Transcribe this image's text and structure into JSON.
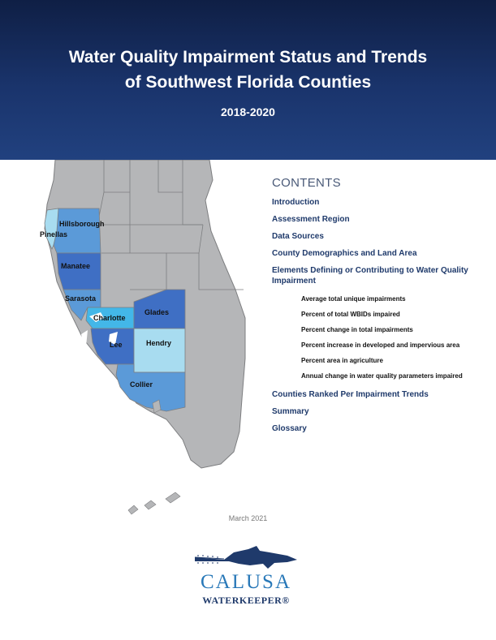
{
  "header": {
    "title_line1": "Water Quality Impairment Status and Trends",
    "title_line2": "of Southwest Florida Counties",
    "years": "2018-2020"
  },
  "map": {
    "counties": {
      "pinellas": "Pinellas",
      "hillsborough": "Hillsborough",
      "manatee": "Manatee",
      "sarasota": "Sarasota",
      "charlotte": "Charlotte",
      "glades": "Glades",
      "lee": "Lee",
      "hendry": "Hendry",
      "collier": "Collier"
    },
    "colors": {
      "land": "#b5b6b8",
      "county_border": "#7d7e80",
      "dark_blue": "#3f6fc4",
      "mid_blue": "#5b9ad8",
      "bright_blue": "#43b7e8",
      "light_blue": "#a8dcf0"
    }
  },
  "contents": {
    "heading": "CONTENTS",
    "items": [
      "Introduction",
      "Assessment Region",
      "Data Sources",
      "County Demographics and Land Area",
      "Elements Defining or Contributing to Water Quality Impairment"
    ],
    "subitems": [
      "Average total unique impairments",
      "Percent of total WBIDs impaired",
      "Percent change in total impairments",
      "Percent increase in developed and impervious area",
      "Percent area in agriculture",
      "Annual change in water quality parameters impaired"
    ],
    "items_after": [
      "Counties Ranked Per Impairment Trends",
      "Summary",
      "Glossary"
    ]
  },
  "footer": {
    "date": "March 2021",
    "logo_word1": "CALUSA",
    "logo_word2": "WATERKEEPER®"
  }
}
